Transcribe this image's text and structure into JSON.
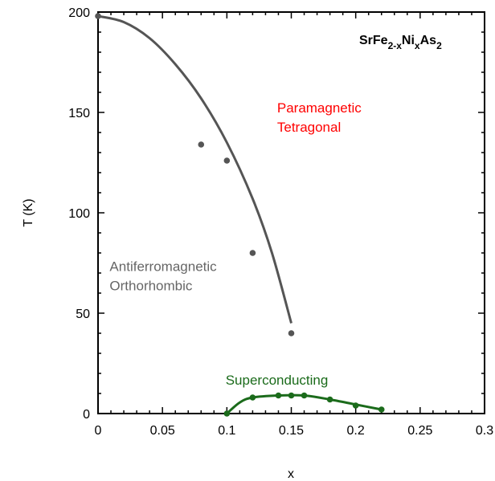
{
  "chart_data": {
    "type": "scatter",
    "title": "",
    "xlabel": "x",
    "ylabel": "T (K)",
    "xlim": [
      0,
      0.3
    ],
    "ylim": [
      0,
      200
    ],
    "x_ticks": [
      "0",
      "0.05",
      "0.1",
      "0.15",
      "0.2",
      "0.25",
      "0.3"
    ],
    "y_ticks": [
      "0",
      "50",
      "100",
      "150",
      "200"
    ],
    "grid": false,
    "compound": {
      "parts": [
        {
          "text": "SrFe",
          "sub": false
        },
        {
          "text": "2-x",
          "sub": true
        },
        {
          "text": "Ni",
          "sub": false
        },
        {
          "text": "x",
          "sub": true
        },
        {
          "text": "As",
          "sub": false
        },
        {
          "text": "2",
          "sub": true
        }
      ]
    },
    "series": [
      {
        "color": "#555555",
        "points": [
          [
            0,
            198
          ],
          [
            0.08,
            134
          ],
          [
            0.1,
            126
          ],
          [
            0.12,
            80
          ],
          [
            0.15,
            40
          ]
        ],
        "curve": [
          [
            0,
            198
          ],
          [
            0.02,
            195
          ],
          [
            0.04,
            187
          ],
          [
            0.06,
            174
          ],
          [
            0.08,
            157
          ],
          [
            0.1,
            135
          ],
          [
            0.12,
            107
          ],
          [
            0.135,
            80
          ],
          [
            0.15,
            45
          ]
        ]
      },
      {
        "color": "#1b6b1b",
        "points": [
          [
            0.1,
            0
          ],
          [
            0.12,
            8
          ],
          [
            0.14,
            9
          ],
          [
            0.15,
            9
          ],
          [
            0.16,
            9
          ],
          [
            0.18,
            7
          ],
          [
            0.2,
            4
          ],
          [
            0.22,
            2
          ]
        ],
        "curve": [
          [
            0.1,
            0
          ],
          [
            0.11,
            5.5
          ],
          [
            0.12,
            8
          ],
          [
            0.14,
            9
          ],
          [
            0.16,
            9
          ],
          [
            0.18,
            7
          ],
          [
            0.2,
            4.5
          ],
          [
            0.22,
            2
          ]
        ]
      }
    ],
    "annotations": [
      {
        "lines": [
          "Paramagnetic",
          "Tetragonal"
        ],
        "color": "#ff0000",
        "x": 0.139,
        "y": 150
      },
      {
        "lines": [
          "Antiferromagnetic",
          "Orthorhombic"
        ],
        "color": "#666666",
        "x": 0.009,
        "y": 71
      },
      {
        "lines": [
          "Superconducting"
        ],
        "color": "#1b6b1b",
        "x": 0.099,
        "y": 14.5
      }
    ]
  }
}
